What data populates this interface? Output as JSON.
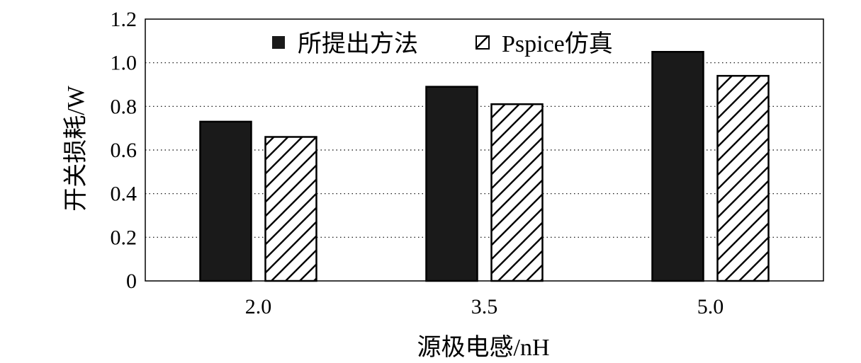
{
  "chart_data": {
    "type": "bar",
    "title": "",
    "xlabel": "源极电感/nH",
    "ylabel": "开关损耗/W",
    "ylim": [
      0,
      1.2
    ],
    "yticks": [
      "0",
      "0.2",
      "0.4",
      "0.6",
      "0.8",
      "1.0",
      "1.2"
    ],
    "categories": [
      "2.0",
      "3.5",
      "5.0"
    ],
    "grid": "horizontal dotted",
    "legend_position": "top-center",
    "series": [
      {
        "name": "所提出方法",
        "values": [
          0.73,
          0.89,
          1.05
        ],
        "style": "solid",
        "color": "#1a1a1a"
      },
      {
        "name": "Pspice仿真",
        "values": [
          0.66,
          0.81,
          0.94
        ],
        "style": "hatched",
        "color": "#000000"
      }
    ]
  }
}
